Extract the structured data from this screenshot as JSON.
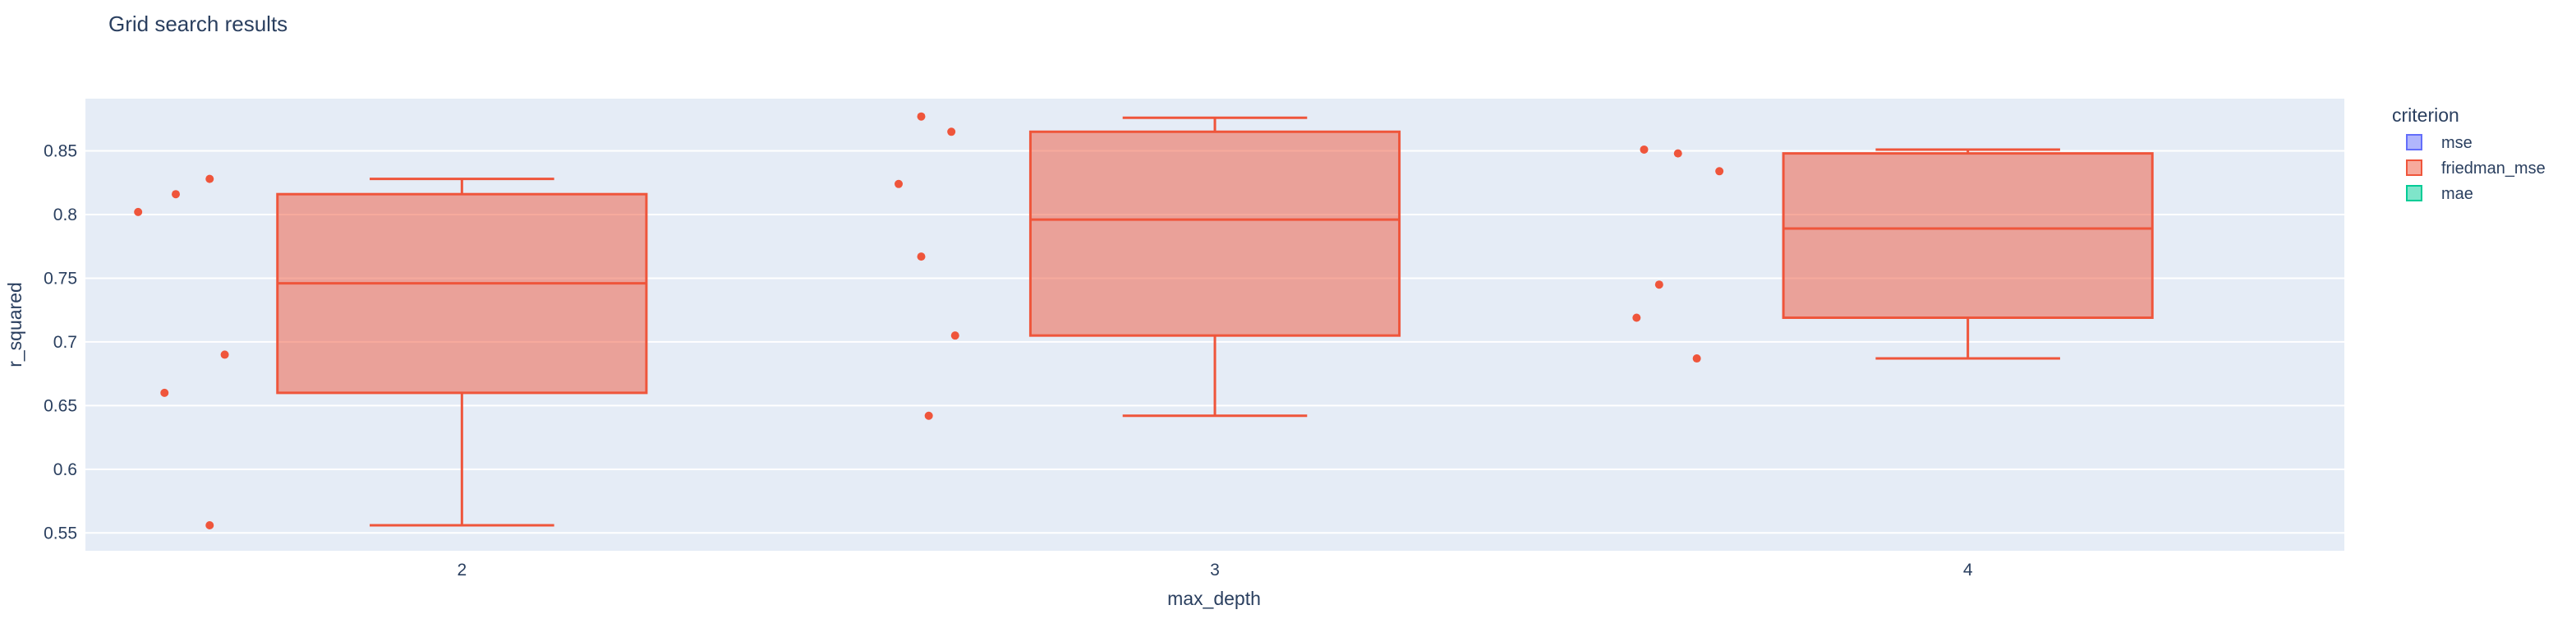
{
  "chart_data": {
    "type": "box",
    "title": "Grid search results",
    "xlabel": "max_depth",
    "ylabel": "r_squared",
    "categories": [
      "2",
      "3",
      "4"
    ],
    "yticks": [
      "0.55",
      "0.6",
      "0.65",
      "0.7",
      "0.75",
      "0.8",
      "0.85"
    ],
    "ytick_values": [
      0.55,
      0.6,
      0.65,
      0.7,
      0.75,
      0.8,
      0.85
    ],
    "ylim": [
      0.536,
      0.891
    ],
    "grid": true,
    "legend": {
      "title": "criterion",
      "placement": "right",
      "entries": [
        {
          "name": "mse",
          "color": "#636efa"
        },
        {
          "name": "friedman_mse",
          "color": "#EF553B"
        },
        {
          "name": "mae",
          "color": "#00cc96"
        }
      ]
    },
    "series": [
      {
        "name": "friedman_mse",
        "color": "#EF553B",
        "boxes": [
          {
            "category": "2",
            "lower_whisker": 0.556,
            "q1": 0.66,
            "median": 0.746,
            "q3": 0.816,
            "upper_whisker": 0.828,
            "points": [
              {
                "offset": -0.43,
                "y": 0.802
              },
              {
                "offset": -0.395,
                "y": 0.66
              },
              {
                "offset": -0.38,
                "y": 0.816
              },
              {
                "offset": -0.335,
                "y": 0.828
              },
              {
                "offset": -0.335,
                "y": 0.556
              },
              {
                "offset": -0.315,
                "y": 0.69
              }
            ]
          },
          {
            "category": "3",
            "lower_whisker": 0.642,
            "q1": 0.705,
            "median": 0.796,
            "q3": 0.865,
            "upper_whisker": 0.876,
            "points": [
              {
                "offset": -0.42,
                "y": 0.824
              },
              {
                "offset": -0.39,
                "y": 0.877
              },
              {
                "offset": -0.39,
                "y": 0.767
              },
              {
                "offset": -0.38,
                "y": 0.642
              },
              {
                "offset": -0.35,
                "y": 0.865
              },
              {
                "offset": -0.345,
                "y": 0.705
              }
            ]
          },
          {
            "category": "4",
            "lower_whisker": 0.687,
            "q1": 0.719,
            "median": 0.789,
            "q3": 0.848,
            "upper_whisker": 0.851,
            "points": [
              {
                "offset": -0.44,
                "y": 0.719
              },
              {
                "offset": -0.43,
                "y": 0.851
              },
              {
                "offset": -0.41,
                "y": 0.745
              },
              {
                "offset": -0.385,
                "y": 0.848
              },
              {
                "offset": -0.36,
                "y": 0.687
              },
              {
                "offset": -0.33,
                "y": 0.834
              }
            ]
          }
        ]
      }
    ]
  }
}
